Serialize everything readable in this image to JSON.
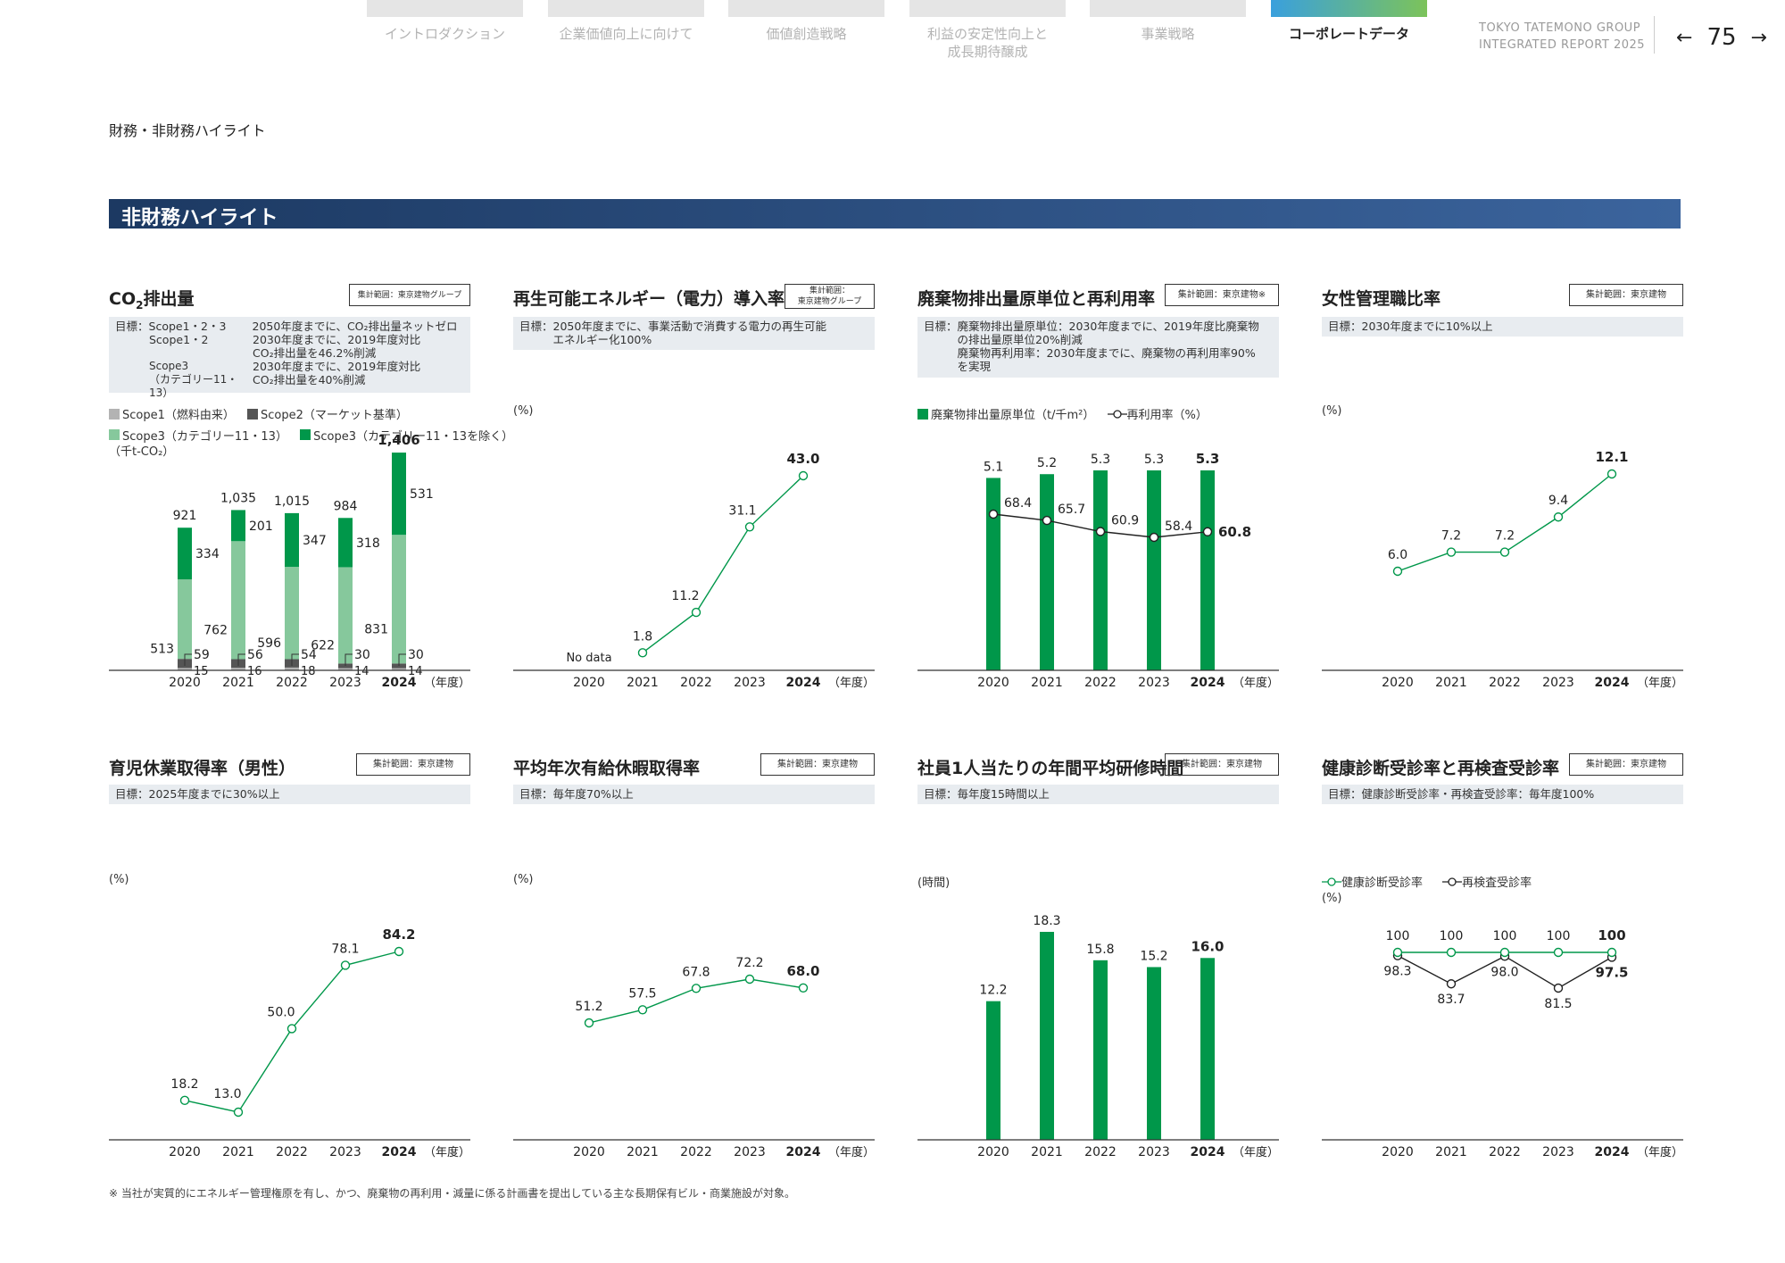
{
  "nav": {
    "tabs": [
      {
        "label": "イントロダクション",
        "active": false
      },
      {
        "label": "企業価値向上に向けて",
        "active": false
      },
      {
        "label": "価値創造戦略",
        "active": false
      },
      {
        "label": "利益の安定性向上と\n成長期待醸成",
        "active": false
      },
      {
        "label": "事業戦略",
        "active": false
      },
      {
        "label": "コーポレートデータ",
        "active": true
      }
    ],
    "brand_line1": "TOKYO TATEMONO GROUP",
    "brand_line2": "INTEGRATED REPORT 2025",
    "page_number": "75",
    "prev_icon": "arrow-left-icon",
    "next_icon": "arrow-right-icon"
  },
  "section_title": "財務・非財務ハイライト",
  "banner_title": "非財務ハイライト",
  "footnote": "※ 当社が実質的にエネルギー管理権原を有し、かつ、廃棄物の再利用・減量に係る計画書を提出している主な長期保有ビル・商業施設が対象。",
  "colors": {
    "green": "#00974a",
    "light_green": "#86c89c",
    "dark_gray": "#555555",
    "light_gray": "#b3b3b3",
    "banner_start": "#1c3962",
    "banner_end": "#3b649d"
  },
  "panels": [
    {
      "title_pre": "CO",
      "title_sub": "2",
      "title_post": "排出量",
      "scope": "集計範囲：東京建物グループ",
      "goal_key": "目標：",
      "goal_lines": [
        {
          "k": "Scope1・2・3",
          "v": "2050年度までに、CO₂排出量ネットゼロ"
        },
        {
          "k": "Scope1・2",
          "v": "2030年度までに、2019年度対比\nCO₂排出量を46.2%削減"
        },
        {
          "k": "Scope3\n（カテゴリー11・13）",
          "v": "2030年度までに、2019年度対比\nCO₂排出量を40%削減"
        }
      ],
      "legend": [
        "Scope1（燃料由来）",
        "Scope2（マーケット基準）",
        "Scope3（カテゴリー11・13）",
        "Scope3（カテゴリー11・13を除く）"
      ],
      "unit": "（千t-CO₂）"
    },
    {
      "title": "再生可能エネルギー（電力）導入率",
      "scope": "集計範囲：\n東京建物グループ",
      "goal_key": "目標：",
      "goal_text": "2050年度までに、事業活動で消費する電力の再生可能\nエネルギー化100%",
      "unit": "(%)"
    },
    {
      "title": "廃棄物排出量原単位と再利用率",
      "scope": "集計範囲：東京建物※",
      "goal_key": "目標：",
      "goal_text": "廃棄物排出量原単位：2030年度までに、2019年度比廃棄物\nの排出量原単位20%削減\n廃棄物再利用率：2030年度までに、廃棄物の再利用率90%\nを実現",
      "legend": [
        "廃棄物排出量原単位（t/千m²）",
        "再利用率（%）"
      ]
    },
    {
      "title": "女性管理職比率",
      "scope": "集計範囲：東京建物",
      "goal_key": "目標：",
      "goal_text": "2030年度までに10%以上",
      "unit": "(%)"
    },
    {
      "title": "育児休業取得率（男性）",
      "scope": "集計範囲：東京建物",
      "goal_key": "目標：",
      "goal_text": "2025年度までに30%以上",
      "unit": "(%)"
    },
    {
      "title": "平均年次有給休暇取得率",
      "scope": "集計範囲：東京建物",
      "goal_key": "目標：",
      "goal_text": "毎年度70%以上",
      "unit": "(%)"
    },
    {
      "title": "社員1人当たりの年間平均研修時間",
      "scope": "集計範囲：東京建物",
      "goal_key": "目標：",
      "goal_text": "毎年度15時間以上",
      "unit": "(時間)"
    },
    {
      "title": "健康診断受診率と再検査受診率",
      "scope": "集計範囲：東京建物",
      "goal_key": "目標：",
      "goal_text": "健康診断受診率・再検査受診率：毎年度100%",
      "legend": [
        "健康診断受診率",
        "再検査受診率"
      ],
      "unit": "(%)"
    }
  ],
  "chart_data": [
    {
      "type": "bar",
      "stacked": true,
      "categories": [
        "2020",
        "2021",
        "2022",
        "2023",
        "2024"
      ],
      "x_unit": "（年度）",
      "series": [
        {
          "name": "Scope1（燃料由来）",
          "values": [
            15,
            16,
            18,
            14,
            14
          ]
        },
        {
          "name": "Scope2（マーケット基準）",
          "values": [
            59,
            56,
            54,
            30,
            30
          ]
        },
        {
          "name": "Scope3（カテゴリー11・13）",
          "values": [
            513,
            762,
            596,
            622,
            831
          ]
        },
        {
          "name": "Scope3（カテゴリー11・13を除く）",
          "values": [
            334,
            201,
            347,
            318,
            531
          ]
        }
      ],
      "totals": [
        921,
        1035,
        1015,
        984,
        1406
      ],
      "total_labels": [
        "921",
        "1,035",
        "1,015",
        "984",
        "1,406"
      ]
    },
    {
      "type": "line",
      "categories": [
        "2020",
        "2021",
        "2022",
        "2023",
        "2024"
      ],
      "x_unit": "（年度）",
      "values": [
        null,
        1.8,
        11.2,
        31.1,
        43.0
      ],
      "labels": [
        "No data",
        "1.8",
        "11.2",
        "31.1",
        "43.0"
      ]
    },
    {
      "type": "bar",
      "combo": true,
      "categories": [
        "2020",
        "2021",
        "2022",
        "2023",
        "2024"
      ],
      "x_unit": "（年度）",
      "series": [
        {
          "name": "廃棄物排出量原単位（t/千m²）",
          "kind": "bar",
          "values": [
            5.1,
            5.2,
            5.3,
            5.3,
            5.3
          ],
          "labels": [
            "5.1",
            "5.2",
            "5.3",
            "5.3",
            "5.3"
          ]
        },
        {
          "name": "再利用率（%）",
          "kind": "line",
          "values": [
            68.4,
            65.7,
            60.9,
            58.4,
            60.8
          ],
          "labels": [
            "68.4",
            "65.7",
            "60.9",
            "58.4",
            "60.8"
          ]
        }
      ]
    },
    {
      "type": "line",
      "categories": [
        "2020",
        "2021",
        "2022",
        "2023",
        "2024"
      ],
      "x_unit": "（年度）",
      "values": [
        6.0,
        7.2,
        7.2,
        9.4,
        12.1
      ],
      "labels": [
        "6.0",
        "7.2",
        "7.2",
        "9.4",
        "12.1"
      ]
    },
    {
      "type": "line",
      "categories": [
        "2020",
        "2021",
        "2022",
        "2023",
        "2024"
      ],
      "x_unit": "（年度）",
      "values": [
        18.2,
        13.0,
        50.0,
        78.1,
        84.2
      ],
      "labels": [
        "18.2",
        "13.0",
        "50.0",
        "78.1",
        "84.2"
      ]
    },
    {
      "type": "line",
      "categories": [
        "2020",
        "2021",
        "2022",
        "2023",
        "2024"
      ],
      "x_unit": "（年度）",
      "values": [
        51.2,
        57.5,
        67.8,
        72.2,
        68.0
      ],
      "labels": [
        "51.2",
        "57.5",
        "67.8",
        "72.2",
        "68.0"
      ]
    },
    {
      "type": "bar",
      "categories": [
        "2020",
        "2021",
        "2022",
        "2023",
        "2024"
      ],
      "x_unit": "（年度）",
      "values": [
        12.2,
        18.3,
        15.8,
        15.2,
        16.0
      ],
      "labels": [
        "12.2",
        "18.3",
        "15.8",
        "15.2",
        "16.0"
      ]
    },
    {
      "type": "line",
      "categories": [
        "2020",
        "2021",
        "2022",
        "2023",
        "2024"
      ],
      "x_unit": "（年度）",
      "series": [
        {
          "name": "健康診断受診率",
          "values": [
            100,
            100,
            100,
            100,
            100
          ],
          "labels": [
            "100",
            "100",
            "100",
            "100",
            "100"
          ]
        },
        {
          "name": "再検査受診率",
          "values": [
            98.3,
            83.7,
            98.0,
            81.5,
            97.5
          ],
          "labels": [
            "98.3",
            "83.7",
            "98.0",
            "81.5",
            "97.5"
          ]
        }
      ]
    }
  ]
}
